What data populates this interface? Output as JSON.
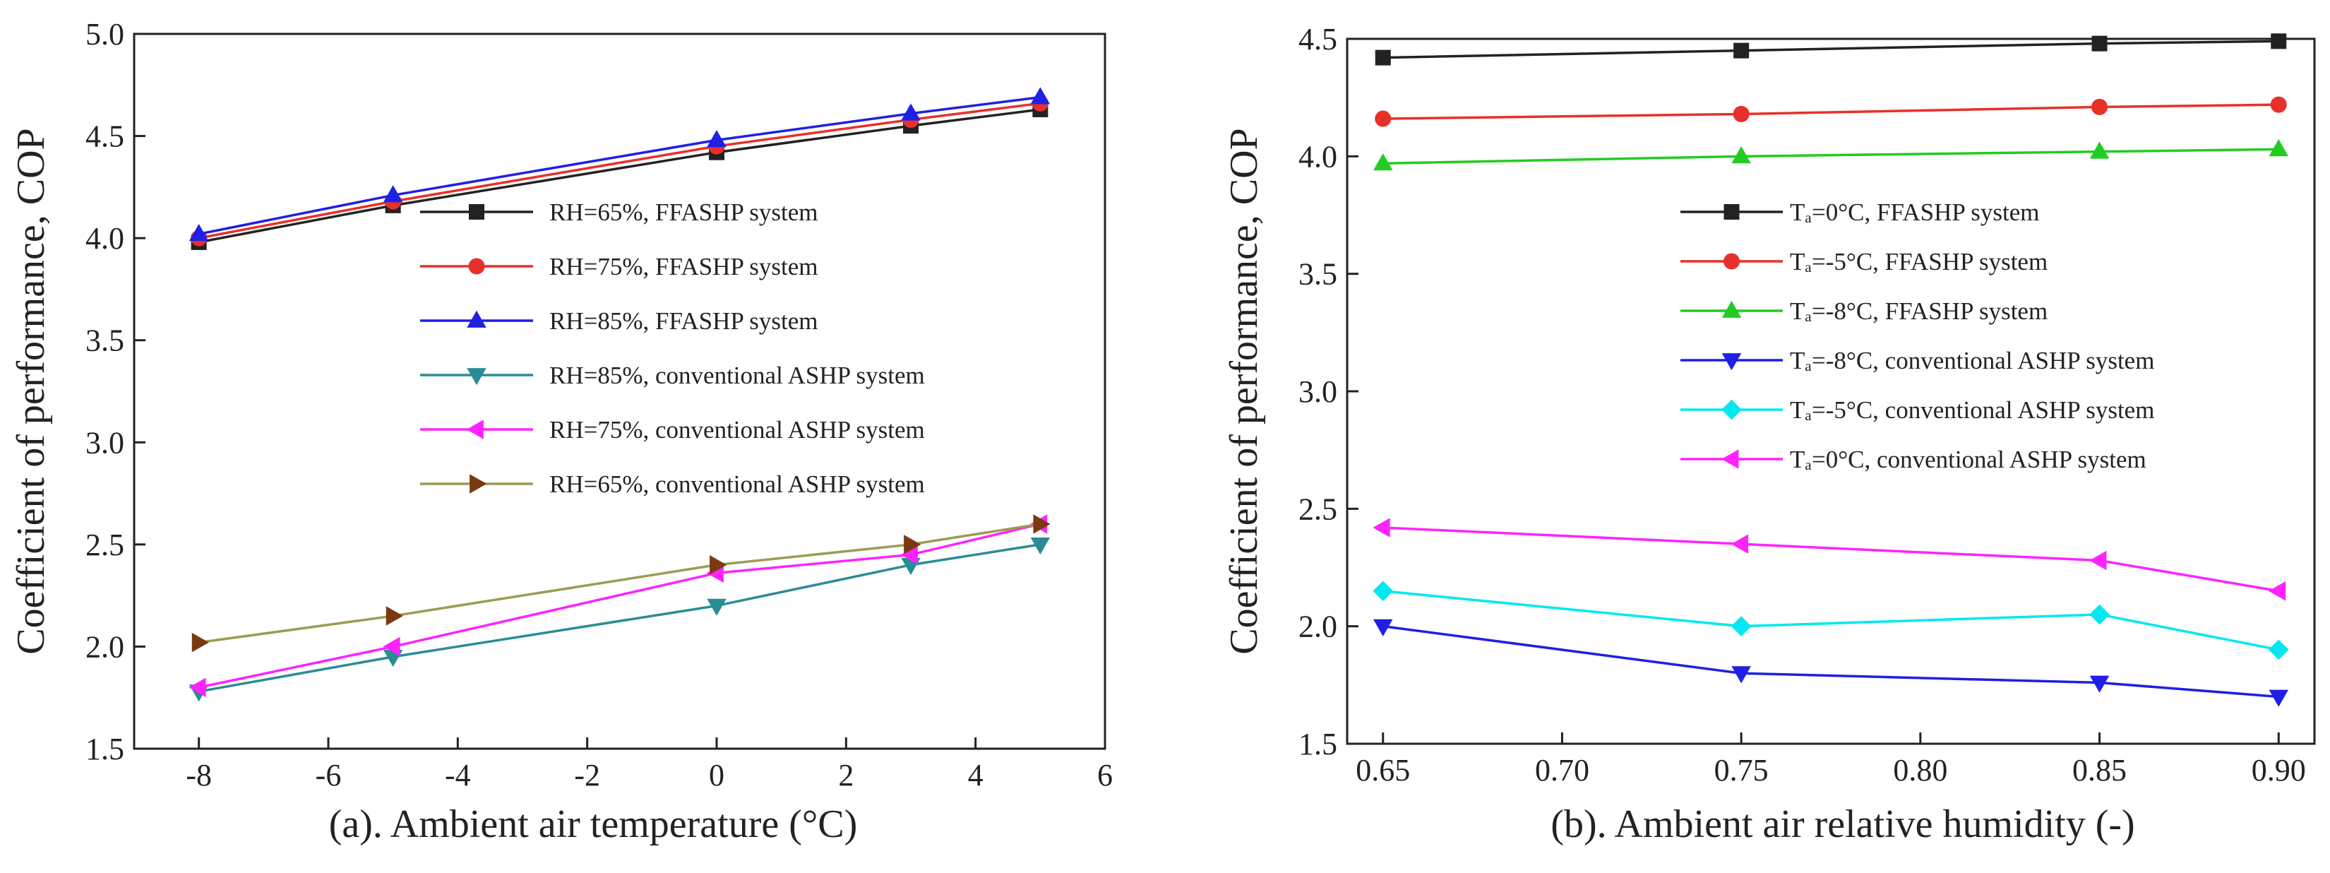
{
  "chart_data": [
    {
      "id": "a",
      "type": "line",
      "caption": "(a). Ambient air temperature (°C)",
      "ylabel": "Coefficient of performance, COP",
      "xlabel": "Ambient air temperature (°C)",
      "xlim": [
        -9,
        6
      ],
      "ylim": [
        1.5,
        5.0
      ],
      "xticks": [
        -8,
        -6,
        -4,
        -2,
        0,
        2,
        4,
        6
      ],
      "xtick_labels": [
        "-8",
        "-6",
        "-4",
        "-2",
        "0",
        "2",
        "4",
        "6"
      ],
      "yticks": [
        1.5,
        2.0,
        2.5,
        3.0,
        3.5,
        4.0,
        4.5,
        5.0
      ],
      "ytick_labels": [
        "1.5",
        "2.0",
        "2.5",
        "3.0",
        "3.5",
        "4.0",
        "4.5",
        "5.0"
      ],
      "grid": false,
      "legend_position": "right",
      "x": [
        -8,
        -5,
        0,
        3,
        5
      ],
      "series": [
        {
          "name": "RH=65%, FFASHP system",
          "values": [
            3.98,
            4.16,
            4.42,
            4.55,
            4.63
          ],
          "color": "#222222",
          "marker": "square"
        },
        {
          "name": "RH=75%, FFASHP system",
          "values": [
            4.0,
            4.18,
            4.45,
            4.58,
            4.66
          ],
          "color": "#e8302a",
          "marker": "circle"
        },
        {
          "name": "RH=85%, FFASHP system",
          "values": [
            4.02,
            4.21,
            4.48,
            4.61,
            4.69
          ],
          "color": "#1f1fe6",
          "marker": "triangle-up"
        },
        {
          "name": "RH=85%, conventional ASHP system",
          "values": [
            1.78,
            1.95,
            2.2,
            2.4,
            2.5
          ],
          "color": "#2a8c94",
          "marker": "triangle-down"
        },
        {
          "name": "RH=75%, conventional ASHP system",
          "values": [
            1.8,
            2.0,
            2.36,
            2.45,
            2.6
          ],
          "color": "#ff22ff",
          "marker": "triangle-left"
        },
        {
          "name": "RH=65%, conventional ASHP system",
          "values": [
            2.02,
            2.15,
            2.4,
            2.5,
            2.6
          ],
          "color": "#9c9c52",
          "marker": "triangle-right",
          "marker_color": "#7a3a10"
        }
      ]
    },
    {
      "id": "b",
      "type": "line",
      "caption": "(b). Ambient air relative humidity (-)",
      "ylabel": "Coefficient of performance, COP",
      "xlabel": "Ambient air relative humidity (-)",
      "xlim": [
        0.64,
        0.91
      ],
      "ylim": [
        1.5,
        4.5
      ],
      "xticks": [
        0.65,
        0.7,
        0.75,
        0.8,
        0.85,
        0.9
      ],
      "xtick_labels": [
        "0.65",
        "0.70",
        "0.75",
        "0.80",
        "0.85",
        "0.90"
      ],
      "yticks": [
        1.5,
        2.0,
        2.5,
        3.0,
        3.5,
        4.0,
        4.5
      ],
      "ytick_labels": [
        "1.5",
        "2.0",
        "2.5",
        "3.0",
        "3.5",
        "4.0",
        "4.5"
      ],
      "grid": false,
      "legend_position": "center-right",
      "x": [
        0.65,
        0.75,
        0.85,
        0.9
      ],
      "series": [
        {
          "name": "Tₐ=0°C, FFASHP system",
          "values": [
            4.42,
            4.45,
            4.48,
            4.49
          ],
          "color": "#222222",
          "marker": "square"
        },
        {
          "name": "Tₐ=-5°C, FFASHP system",
          "values": [
            4.16,
            4.18,
            4.21,
            4.22
          ],
          "color": "#e8302a",
          "marker": "circle"
        },
        {
          "name": "Tₐ=-8°C, FFASHP system",
          "values": [
            3.97,
            4.0,
            4.02,
            4.03
          ],
          "color": "#22cc22",
          "marker": "triangle-up"
        },
        {
          "name": "Tₐ=-8°C, conventional ASHP system",
          "values": [
            2.0,
            1.8,
            1.76,
            1.7
          ],
          "color": "#1f1fe6",
          "marker": "triangle-down"
        },
        {
          "name": "Tₐ=-5°C, conventional ASHP system",
          "values": [
            2.15,
            2.0,
            2.05,
            1.9
          ],
          "color": "#00e8f0",
          "marker": "diamond"
        },
        {
          "name": "Tₐ=0°C, conventional ASHP system",
          "values": [
            2.42,
            2.35,
            2.28,
            2.15
          ],
          "color": "#ff22ff",
          "marker": "triangle-left"
        }
      ]
    }
  ]
}
